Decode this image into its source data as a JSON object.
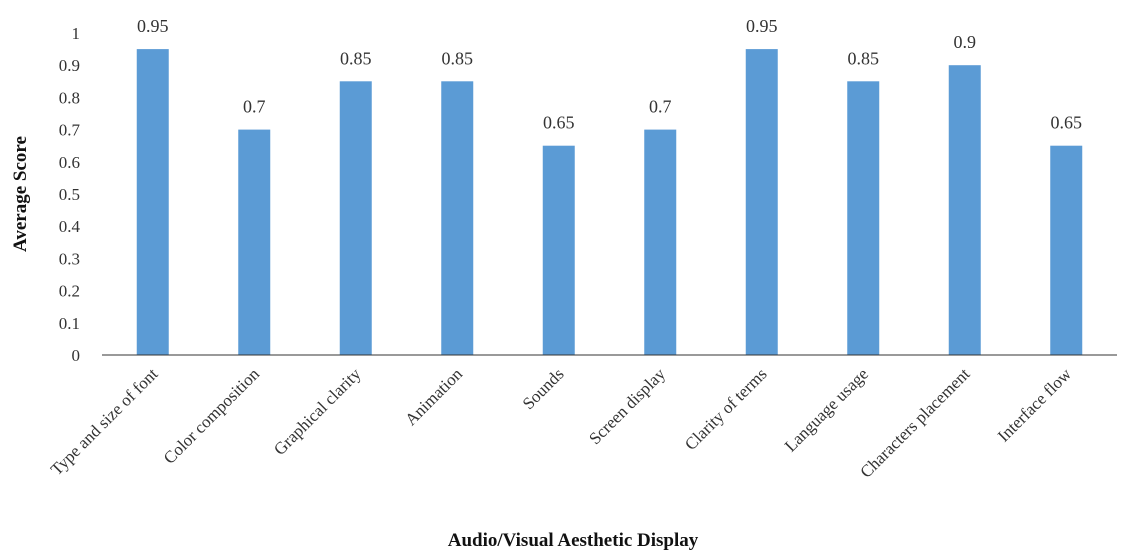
{
  "chart_data": {
    "type": "bar",
    "title": "",
    "xlabel": "Audio/Visual Aesthetic Display",
    "ylabel": "Average Score",
    "ylim": [
      0,
      1
    ],
    "yticks": [
      "0",
      "0.1",
      "0.2",
      "0.3",
      "0.4",
      "0.5",
      "0.6",
      "0.7",
      "0.8",
      "0.9",
      "1"
    ],
    "grid": false,
    "legend": "none",
    "bar_color": "#5b9bd5",
    "categories": [
      "Type and size of font",
      "Color composition",
      "Graphical clarity",
      "Animation",
      "Sounds",
      "Screen display",
      "Clarity of terms",
      "Language usage",
      "Characters placement",
      "Interface flow"
    ],
    "values": [
      0.95,
      0.7,
      0.85,
      0.85,
      0.65,
      0.7,
      0.95,
      0.85,
      0.9,
      0.65
    ],
    "data_labels": [
      "0.95",
      "0.7",
      "0.85",
      "0.85",
      "0.65",
      "0.7",
      "0.95",
      "0.85",
      "0.9",
      "0.65"
    ]
  }
}
